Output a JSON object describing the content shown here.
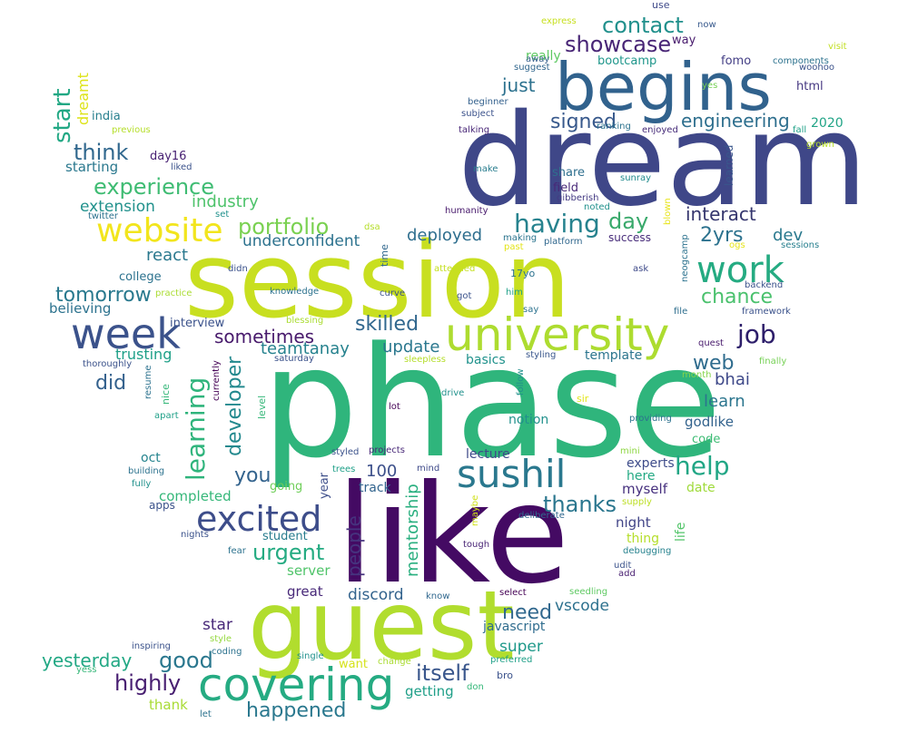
{
  "words": [
    {
      "text": "session",
      "color": "#c8df20"
    },
    {
      "text": "phase",
      "color": "#2fb57c"
    },
    {
      "text": "dream",
      "color": "#3f4788"
    },
    {
      "text": "like",
      "color": "#440a63"
    },
    {
      "text": "guest",
      "color": "#b1dd2e"
    },
    {
      "text": "begins",
      "color": "#31628d"
    },
    {
      "text": "university",
      "color": "#addc30"
    },
    {
      "text": "sushil",
      "color": "#2a788e"
    },
    {
      "text": "covering",
      "color": "#25ab82"
    },
    {
      "text": "week",
      "color": "#3b528b"
    },
    {
      "text": "work",
      "color": "#25ab82"
    },
    {
      "text": "excited",
      "color": "#3d4d8a"
    },
    {
      "text": "website",
      "color": "#f2e51d"
    },
    {
      "text": "learning",
      "color": "#2fb47c"
    },
    {
      "text": "having",
      "color": "#26828e"
    },
    {
      "text": "experience",
      "color": "#3fbc73"
    },
    {
      "text": "showcase",
      "color": "#482576"
    },
    {
      "text": "contact",
      "color": "#21908c"
    },
    {
      "text": "job",
      "color": "#2d1e6a"
    },
    {
      "text": "help",
      "color": "#21a685"
    },
    {
      "text": "itself",
      "color": "#39568c"
    },
    {
      "text": "portfolio",
      "color": "#7ad151"
    },
    {
      "text": "tomorrow",
      "color": "#29798e"
    },
    {
      "text": "urgent",
      "color": "#25ab82"
    },
    {
      "text": "happened",
      "color": "#2a788e"
    },
    {
      "text": "thanks",
      "color": "#2a768e"
    },
    {
      "text": "think",
      "color": "#31688e"
    },
    {
      "text": "highly",
      "color": "#481f71"
    },
    {
      "text": "good",
      "color": "#2a778e"
    },
    {
      "text": "developer",
      "color": "#23898e"
    },
    {
      "text": "skilled",
      "color": "#31678e"
    },
    {
      "text": "interact",
      "color": "#34356d"
    },
    {
      "text": "day",
      "color": "#39a96b"
    },
    {
      "text": "2yrs",
      "color": "#2c728e"
    },
    {
      "text": "chance",
      "color": "#4ac16d"
    },
    {
      "text": "web",
      "color": "#2f6c8e"
    },
    {
      "text": "need",
      "color": "#31688e"
    },
    {
      "text": "start",
      "color": "#22a884"
    },
    {
      "text": "engineering",
      "color": "#2e6f8e"
    },
    {
      "text": "signed",
      "color": "#38598c"
    },
    {
      "text": "people",
      "color": "#46337e"
    },
    {
      "text": "mentorship",
      "color": "#29af7f"
    },
    {
      "text": "sometimes",
      "color": "#481a6c"
    },
    {
      "text": "did",
      "color": "#34618d"
    },
    {
      "text": "you",
      "color": "#33638d"
    },
    {
      "text": "just",
      "color": "#2c718e"
    },
    {
      "text": "underconfident",
      "color": "#2c728e"
    },
    {
      "text": "teamtanay",
      "color": "#26828e"
    },
    {
      "text": "industry",
      "color": "#4ec36b"
    },
    {
      "text": "yesterday",
      "color": "#22a884"
    },
    {
      "text": "update",
      "color": "#2a778e"
    },
    {
      "text": "deployed",
      "color": "#2e6e8e"
    },
    {
      "text": "react",
      "color": "#2a788e"
    },
    {
      "text": "bhai",
      "color": "#3e4989"
    },
    {
      "text": "learn",
      "color": "#2b758e"
    },
    {
      "text": "dev",
      "color": "#2a798e"
    },
    {
      "text": "extension",
      "color": "#21918c"
    },
    {
      "text": "100",
      "color": "#3c4f8a"
    },
    {
      "text": "discord",
      "color": "#33638d"
    },
    {
      "text": "vscode",
      "color": "#2d718e"
    },
    {
      "text": "star",
      "color": "#482979"
    },
    {
      "text": "super",
      "color": "#1f998a"
    },
    {
      "text": "getting",
      "color": "#1f9f88"
    },
    {
      "text": "trusting",
      "color": "#1fa088"
    },
    {
      "text": "believing",
      "color": "#2c728e"
    },
    {
      "text": "completed",
      "color": "#35b779"
    },
    {
      "text": "server",
      "color": "#50c46a"
    },
    {
      "text": "great",
      "color": "#482979"
    },
    {
      "text": "thank",
      "color": "#a8db34"
    },
    {
      "text": "javascript",
      "color": "#2f6c8e"
    },
    {
      "text": "night",
      "color": "#414487"
    },
    {
      "text": "myself",
      "color": "#46307e"
    },
    {
      "text": "experts",
      "color": "#3e4c8a"
    },
    {
      "text": "here",
      "color": "#23a983"
    },
    {
      "text": "date",
      "color": "#9fda3a"
    },
    {
      "text": "life",
      "color": "#52c569"
    },
    {
      "text": "thing",
      "color": "#b5de2b"
    },
    {
      "text": "godlike",
      "color": "#33638d"
    },
    {
      "text": "notion",
      "color": "#21918c"
    },
    {
      "text": "code",
      "color": "#3dbc74"
    },
    {
      "text": "lecture",
      "color": "#3e4a89"
    },
    {
      "text": "track",
      "color": "#32648e"
    },
    {
      "text": "oct",
      "color": "#25848e"
    },
    {
      "text": "year",
      "color": "#3d4e8a"
    },
    {
      "text": "student",
      "color": "#287c8e"
    },
    {
      "text": "going",
      "color": "#6ece58"
    },
    {
      "text": "basics",
      "color": "#20928c"
    },
    {
      "text": "template",
      "color": "#2b758e"
    },
    {
      "text": "interview",
      "color": "#3b528b"
    },
    {
      "text": "college",
      "color": "#2c728e"
    },
    {
      "text": "starting",
      "color": "#2a788e"
    },
    {
      "text": "day16",
      "color": "#482173"
    },
    {
      "text": "india",
      "color": "#277f8e"
    },
    {
      "text": "dreamt",
      "color": "#dde318"
    },
    {
      "text": "really",
      "color": "#5ec962"
    },
    {
      "text": "bootcamp",
      "color": "#1f968b"
    },
    {
      "text": "fomo",
      "color": "#433e85"
    },
    {
      "text": "way",
      "color": "#481b6d"
    },
    {
      "text": "html",
      "color": "#453781"
    },
    {
      "text": "2020",
      "color": "#20a486"
    },
    {
      "text": "share",
      "color": "#2e6f8e"
    },
    {
      "text": "field",
      "color": "#482878"
    },
    {
      "text": "success",
      "color": "#472c7a"
    },
    {
      "text": "sunray",
      "color": "#228b8d"
    },
    {
      "text": "learned",
      "color": "#39568c"
    },
    {
      "text": "use",
      "color": "#3e4989"
    },
    {
      "text": "express",
      "color": "#c8e020"
    },
    {
      "text": "now",
      "color": "#37598c"
    },
    {
      "text": "visit",
      "color": "#c2df23"
    },
    {
      "text": "components",
      "color": "#2c728e"
    },
    {
      "text": "woohoo",
      "color": "#3b528b"
    },
    {
      "text": "away",
      "color": "#35608d"
    },
    {
      "text": "suggest",
      "color": "#31678e"
    },
    {
      "text": "yes",
      "color": "#75d054"
    },
    {
      "text": "beginner",
      "color": "#34618d"
    },
    {
      "text": "subject",
      "color": "#3b528b"
    },
    {
      "text": "talking",
      "color": "#482677"
    },
    {
      "text": "ranking",
      "color": "#2c728e"
    },
    {
      "text": "enjoyed",
      "color": "#472c7a"
    },
    {
      "text": "fall",
      "color": "#1fa188"
    },
    {
      "text": "grown",
      "color": "#b8de29"
    },
    {
      "text": "make",
      "color": "#287d8e"
    },
    {
      "text": "gibberish",
      "color": "#443a83"
    },
    {
      "text": "noted",
      "color": "#21918c"
    },
    {
      "text": "humanity",
      "color": "#481a6c"
    },
    {
      "text": "dsa",
      "color": "#b5de2b"
    },
    {
      "text": "making",
      "color": "#2b748e"
    },
    {
      "text": "past",
      "color": "#e3e418"
    },
    {
      "text": "platform",
      "color": "#31688e"
    },
    {
      "text": "blown",
      "color": "#e7e419"
    },
    {
      "text": "neogcamp",
      "color": "#2c728e"
    },
    {
      "text": "ogs",
      "color": "#e5e419"
    },
    {
      "text": "sessions",
      "color": "#277f8e"
    },
    {
      "text": "attended",
      "color": "#c5e021"
    },
    {
      "text": "17yo",
      "color": "#2c728e"
    },
    {
      "text": "ask",
      "color": "#3e4a89"
    },
    {
      "text": "backend",
      "color": "#3b528b"
    },
    {
      "text": "framework",
      "color": "#3b528b"
    },
    {
      "text": "file",
      "color": "#2e6e8e"
    },
    {
      "text": "quest",
      "color": "#481b6d"
    },
    {
      "text": "month",
      "color": "#84d44b"
    },
    {
      "text": "finally",
      "color": "#75d054"
    },
    {
      "text": "styling",
      "color": "#39568c"
    },
    {
      "text": "follow",
      "color": "#21918c"
    },
    {
      "text": "sir",
      "color": "#e2e418"
    },
    {
      "text": "providing",
      "color": "#2c728e"
    },
    {
      "text": "mini",
      "color": "#8fd744"
    },
    {
      "text": "supply",
      "color": "#bddf26"
    },
    {
      "text": "deliberate",
      "color": "#31678e"
    },
    {
      "text": "maybe",
      "color": "#d0e11c"
    },
    {
      "text": "tough",
      "color": "#482475"
    },
    {
      "text": "debugging",
      "color": "#26828e"
    },
    {
      "text": "udit",
      "color": "#3b528b"
    },
    {
      "text": "add",
      "color": "#481f71"
    },
    {
      "text": "know",
      "color": "#31688e"
    },
    {
      "text": "select",
      "color": "#440154"
    },
    {
      "text": "seedling",
      "color": "#5ec962"
    },
    {
      "text": "bro",
      "color": "#3b528b"
    },
    {
      "text": "preferred",
      "color": "#1fa088"
    },
    {
      "text": "don",
      "color": "#35b779"
    },
    {
      "text": "single",
      "color": "#21918c"
    },
    {
      "text": "want",
      "color": "#d5e21a"
    },
    {
      "text": "change",
      "color": "#aadc32"
    },
    {
      "text": "inspiring",
      "color": "#3b528b"
    },
    {
      "text": "coding",
      "color": "#2c728e"
    },
    {
      "text": "style",
      "color": "#95d840"
    },
    {
      "text": "yess",
      "color": "#35b779"
    },
    {
      "text": "let",
      "color": "#2c728e"
    },
    {
      "text": "nights",
      "color": "#3b528b"
    },
    {
      "text": "fear",
      "color": "#2c728e"
    },
    {
      "text": "apps",
      "color": "#3b528b"
    },
    {
      "text": "fully",
      "color": "#21918c"
    },
    {
      "text": "building",
      "color": "#2c728e"
    },
    {
      "text": "trees",
      "color": "#1fa088"
    },
    {
      "text": "styled",
      "color": "#3b528b"
    },
    {
      "text": "projects",
      "color": "#482878"
    },
    {
      "text": "mind",
      "color": "#3e4989"
    },
    {
      "text": "drive",
      "color": "#21918c"
    },
    {
      "text": "lot",
      "color": "#440154"
    },
    {
      "text": "sleepless",
      "color": "#b5de2b"
    },
    {
      "text": "saturday",
      "color": "#3b528b"
    },
    {
      "text": "currently",
      "color": "#440154"
    },
    {
      "text": "level",
      "color": "#35b779"
    },
    {
      "text": "nice",
      "color": "#35b779"
    },
    {
      "text": "resume",
      "color": "#2c728e"
    },
    {
      "text": "apart",
      "color": "#1fa088"
    },
    {
      "text": "thoroughly",
      "color": "#3b528b"
    },
    {
      "text": "blessing",
      "color": "#aadc32"
    },
    {
      "text": "knowledge",
      "color": "#2c728e"
    },
    {
      "text": "didn",
      "color": "#3b528b"
    },
    {
      "text": "practice",
      "color": "#aadc32"
    },
    {
      "text": "curve",
      "color": "#3b528b"
    },
    {
      "text": "got",
      "color": "#3b528b"
    },
    {
      "text": "him",
      "color": "#1fa088"
    },
    {
      "text": "say",
      "color": "#2c728e"
    },
    {
      "text": "time",
      "color": "#31688e"
    },
    {
      "text": "set",
      "color": "#21918c"
    },
    {
      "text": "twitter",
      "color": "#2c728e"
    },
    {
      "text": "liked",
      "color": "#3b528b"
    },
    {
      "text": "previous",
      "color": "#b5de2b"
    }
  ]
}
